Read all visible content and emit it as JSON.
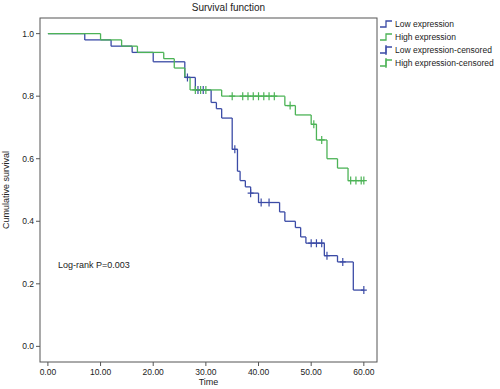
{
  "chart_data": {
    "type": "step",
    "title": "Survival function",
    "x_label": "Time",
    "y_label": "Cumulative survival",
    "annotation": "Log-rank P=0.003",
    "legend": "right",
    "grid": false,
    "xlim": [
      -1.5,
      62.5
    ],
    "ylim": [
      -0.05,
      1.05
    ],
    "xticks": [
      {
        "value": 0,
        "label": "0.00"
      },
      {
        "value": 10,
        "label": "10.00"
      },
      {
        "value": 20,
        "label": "20.00"
      },
      {
        "value": 30,
        "label": "30.00"
      },
      {
        "value": 40,
        "label": "40.00"
      },
      {
        "value": 50,
        "label": "50.00"
      },
      {
        "value": 60,
        "label": "60.00"
      }
    ],
    "yticks": [
      {
        "value": 0,
        "label": "0.0"
      },
      {
        "value": 0.2,
        "label": "0.2"
      },
      {
        "value": 0.4,
        "label": "0.4"
      },
      {
        "value": 0.6,
        "label": "0.6"
      },
      {
        "value": 0.8,
        "label": "0.8"
      },
      {
        "value": 1,
        "label": "1.0"
      }
    ],
    "series": [
      {
        "name": "Low expression",
        "type": "step",
        "color": "#3b4ba6",
        "x": [
          0,
          7,
          12,
          16,
          20,
          26,
          28,
          31,
          32,
          33,
          35,
          36,
          36.5,
          37.5,
          38.5,
          40,
          44,
          45,
          47,
          48,
          49,
          52.5,
          55,
          58,
          60
        ],
        "values": [
          1.0,
          0.98,
          0.96,
          0.94,
          0.91,
          0.86,
          0.82,
          0.78,
          0.76,
          0.73,
          0.63,
          0.56,
          0.53,
          0.51,
          0.49,
          0.46,
          0.43,
          0.4,
          0.38,
          0.35,
          0.33,
          0.29,
          0.27,
          0.18,
          0.18
        ]
      },
      {
        "name": "High expression",
        "type": "step",
        "color": "#4cb356",
        "x": [
          0,
          10,
          14,
          17,
          22,
          24,
          26,
          27,
          33,
          45,
          47,
          50,
          51,
          53,
          55,
          57,
          60
        ],
        "values": [
          1.0,
          0.98,
          0.96,
          0.94,
          0.92,
          0.89,
          0.86,
          0.82,
          0.8,
          0.77,
          0.74,
          0.71,
          0.66,
          0.6,
          0.57,
          0.53,
          0.53
        ]
      },
      {
        "name": "Low expression-censored",
        "type": "scatter",
        "marker": "plus",
        "color": "#3b4ba6",
        "x": [
          26.5,
          28.5,
          29.5,
          35.5,
          38.5,
          40.5,
          42,
          50,
          51,
          52,
          53,
          56,
          60
        ],
        "values": [
          0.86,
          0.82,
          0.82,
          0.63,
          0.49,
          0.46,
          0.46,
          0.33,
          0.33,
          0.33,
          0.29,
          0.27,
          0.18
        ]
      },
      {
        "name": "High expression-censored",
        "type": "scatter",
        "marker": "plus",
        "color": "#4cb356",
        "x": [
          28,
          29,
          30,
          35,
          37,
          38,
          39,
          40,
          41,
          42,
          43,
          46,
          50.5,
          52,
          57.5,
          58.5,
          59.5,
          60
        ],
        "values": [
          0.82,
          0.82,
          0.82,
          0.8,
          0.8,
          0.8,
          0.8,
          0.8,
          0.8,
          0.8,
          0.8,
          0.77,
          0.71,
          0.66,
          0.53,
          0.53,
          0.53,
          0.53
        ]
      }
    ]
  }
}
